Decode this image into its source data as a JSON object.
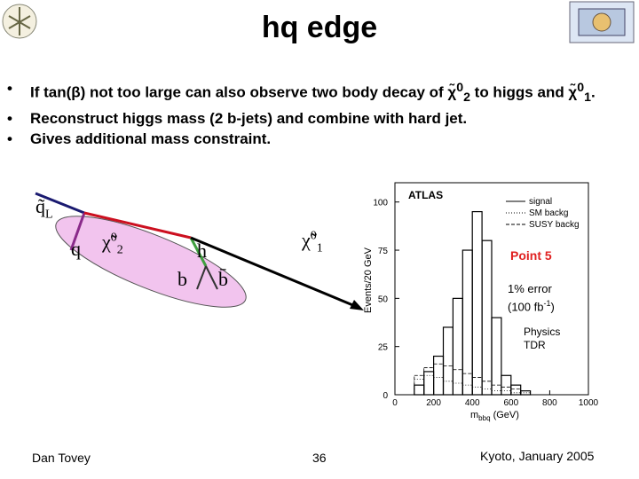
{
  "title": "hq edge",
  "bullets": [
    [
      "If tan(β) not too large can also observe two body decay of χ̃",
      "0",
      "2",
      " to higgs and χ̃",
      "0",
      "1",
      "."
    ],
    [
      "Reconstruct higgs mass (2 b-jets) and combine with hard jet."
    ],
    [
      "Gives additional mass constraint."
    ]
  ],
  "diagram": {
    "squark": {
      "symbol": "q̃",
      "sub": "L"
    },
    "quark": "q",
    "chi2": {
      "symbol": "χ̃",
      "sup": "0",
      "sub": "2"
    },
    "higgs": "h",
    "b": "b",
    "bbar": "b̄",
    "chi1": {
      "symbol": "χ̃",
      "sup": "0",
      "sub": "1"
    }
  },
  "plot": {
    "xlim": [
      0,
      1000
    ],
    "ylim": [
      0,
      110
    ],
    "xticks": [
      0,
      200,
      400,
      600,
      800,
      1000
    ],
    "yticks": [
      0,
      25,
      50,
      75,
      100
    ],
    "ylabel": "Events/20 GeV",
    "xlabel": [
      "m",
      "bbq",
      " (GeV)"
    ],
    "bins": [
      100,
      150,
      200,
      250,
      300,
      350,
      400,
      450,
      500,
      550,
      600,
      650,
      700
    ],
    "series": [
      {
        "name": "signal",
        "style": "solid",
        "values": [
          5,
          12,
          20,
          35,
          50,
          75,
          95,
          80,
          40,
          10,
          5,
          2
        ]
      },
      {
        "name": "SM backg",
        "style": "dotted",
        "values": [
          8,
          10,
          9,
          7,
          6,
          5,
          4,
          3,
          2,
          2,
          1,
          1
        ]
      },
      {
        "name": "SUSY backg",
        "style": "dashed",
        "values": [
          10,
          14,
          16,
          15,
          13,
          11,
          9,
          7,
          5,
          4,
          3,
          2
        ]
      }
    ],
    "annotations": [
      "ATLAS",
      "Point 5",
      [
        "1% error",
        "(100 fb",
        "-1",
        ")"
      ],
      [
        "Physics",
        "TDR"
      ]
    ]
  },
  "footer": {
    "author": "Dan Tovey",
    "page": "36",
    "event": "Kyoto, January 2005"
  }
}
